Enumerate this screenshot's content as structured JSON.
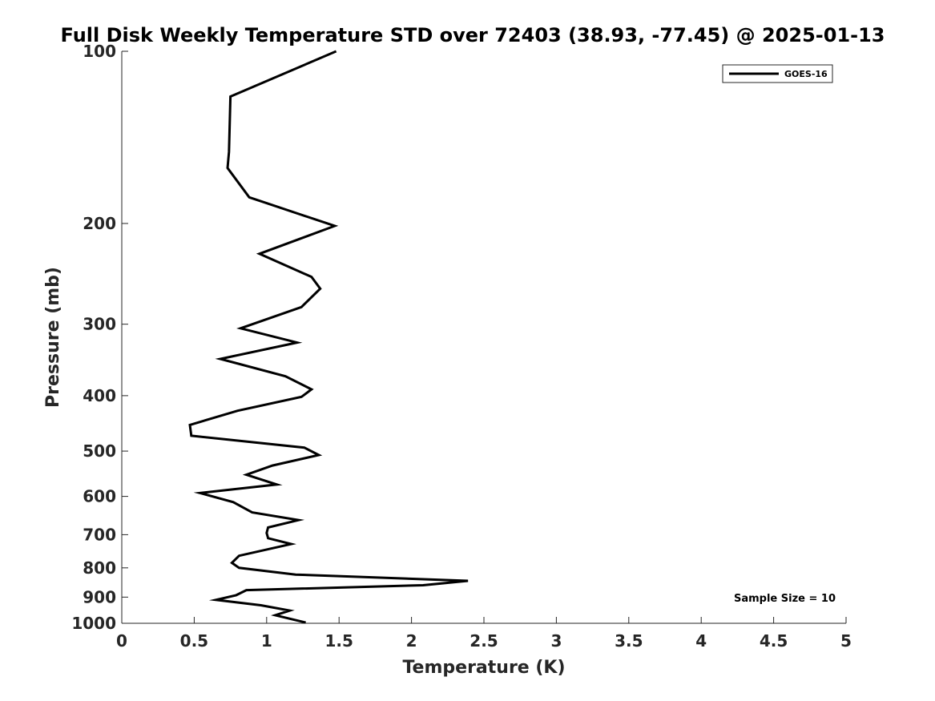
{
  "chart_data": {
    "type": "line",
    "title": "Full Disk Weekly Temperature STD over 72403 (38.93, -77.45) @ 2025-01-13",
    "xlabel": "Temperature (K)",
    "ylabel": "Pressure (mb)",
    "xlim": [
      0,
      5
    ],
    "ylim": [
      100,
      1000
    ],
    "y_scale": "log",
    "y_reversed": true,
    "x_ticks": [
      0,
      0.5,
      1,
      1.5,
      2,
      2.5,
      3,
      3.5,
      4,
      4.5,
      5
    ],
    "x_tick_labels": [
      "0",
      "0.5",
      "1",
      "1.5",
      "2",
      "2.5",
      "3",
      "3.5",
      "4",
      "4.5",
      "5"
    ],
    "y_ticks": [
      100,
      200,
      300,
      400,
      500,
      600,
      700,
      800,
      900,
      1000
    ],
    "y_tick_labels": [
      "100",
      "200",
      "300",
      "400",
      "500",
      "600",
      "700",
      "800",
      "900",
      "1000"
    ],
    "grid": false,
    "legend_position": "top-right",
    "annotation": "Sample Size = 10",
    "series": [
      {
        "name": "GOES-16",
        "color": "#000000",
        "points": [
          [
            1.48,
            100
          ],
          [
            0.75,
            120
          ],
          [
            0.74,
            150
          ],
          [
            0.73,
            160
          ],
          [
            0.88,
            180
          ],
          [
            1.47,
            202
          ],
          [
            0.95,
            226
          ],
          [
            1.31,
            248
          ],
          [
            1.37,
            260
          ],
          [
            1.24,
            280
          ],
          [
            0.82,
            305
          ],
          [
            1.21,
            323
          ],
          [
            0.68,
            345
          ],
          [
            1.13,
            370
          ],
          [
            1.31,
            390
          ],
          [
            1.24,
            402
          ],
          [
            0.8,
            425
          ],
          [
            0.47,
            450
          ],
          [
            0.48,
            470
          ],
          [
            1.26,
            493
          ],
          [
            1.36,
            508
          ],
          [
            1.04,
            530
          ],
          [
            0.86,
            550
          ],
          [
            1.07,
            572
          ],
          [
            0.54,
            592
          ],
          [
            0.77,
            614
          ],
          [
            0.9,
            640
          ],
          [
            1.22,
            660
          ],
          [
            1.01,
            680
          ],
          [
            1.0,
            695
          ],
          [
            1.01,
            710
          ],
          [
            1.17,
            727
          ],
          [
            0.81,
            762
          ],
          [
            0.76,
            784
          ],
          [
            0.81,
            800
          ],
          [
            1.2,
            822
          ],
          [
            2.39,
            843
          ],
          [
            2.08,
            858
          ],
          [
            0.86,
            875
          ],
          [
            0.79,
            893
          ],
          [
            0.65,
            910
          ],
          [
            0.96,
            930
          ],
          [
            1.16,
            950
          ],
          [
            1.06,
            968
          ],
          [
            1.27,
            997
          ]
        ]
      }
    ]
  }
}
